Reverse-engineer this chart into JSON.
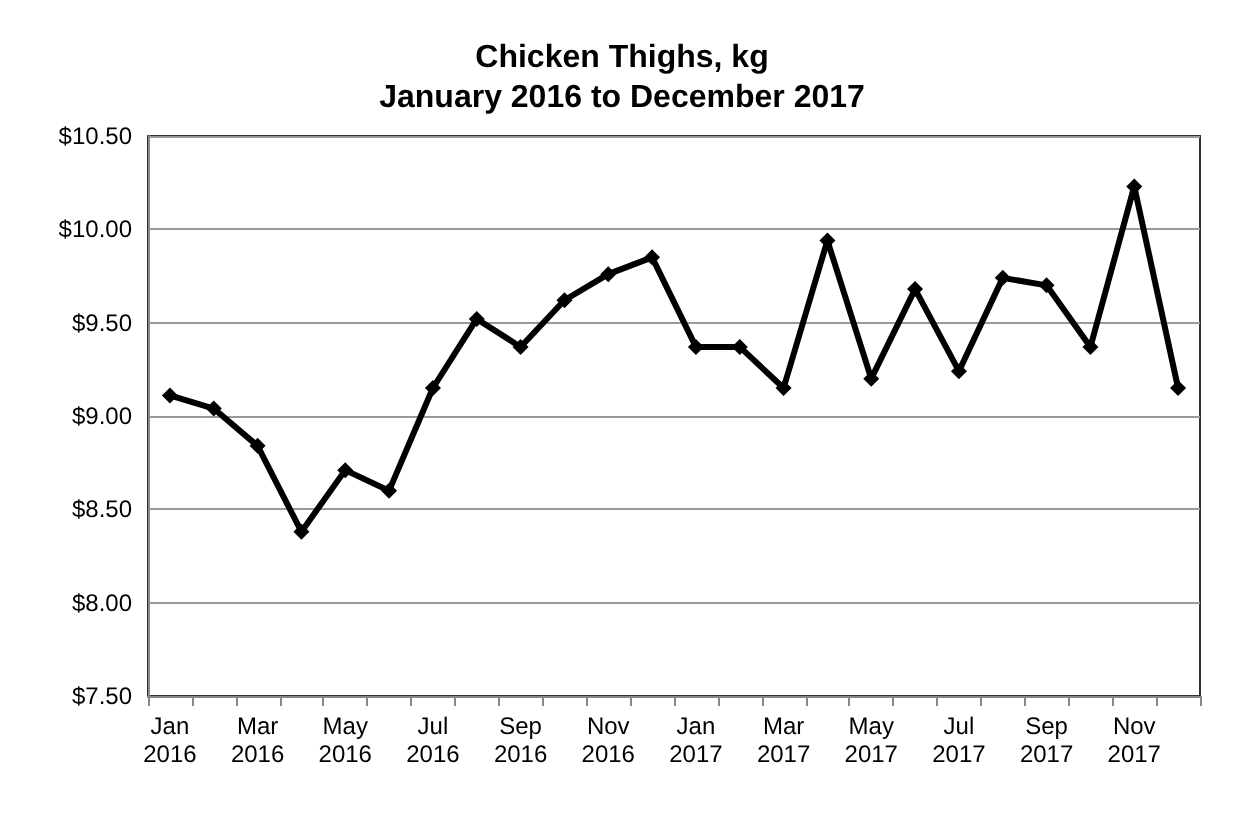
{
  "chart_data": {
    "type": "line",
    "title": "Chicken Thighs, kg\nJanuary 2016 to December 2017",
    "categories": [
      "Jan\n2016",
      null,
      "Mar\n2016",
      null,
      "May\n2016",
      null,
      "Jul\n2016",
      null,
      "Sep\n2016",
      null,
      "Nov\n2016",
      null,
      "Jan\n2017",
      null,
      "Mar\n2017",
      null,
      "May\n2017",
      null,
      "Jul\n2017",
      null,
      "Sep\n2017",
      null,
      "Nov\n2017",
      null
    ],
    "series": [
      {
        "color": "#000000",
        "values": [
          9.11,
          9.04,
          8.84,
          8.38,
          8.71,
          8.6,
          9.15,
          9.52,
          9.37,
          9.62,
          9.76,
          9.85,
          9.37,
          9.37,
          9.15,
          9.94,
          9.2,
          9.68,
          9.24,
          9.74,
          9.7,
          9.37,
          10.23,
          9.15
        ]
      }
    ],
    "ylim": [
      7.5,
      10.5
    ],
    "yticks": [
      {
        "value": 7.5,
        "label": "$7.50"
      },
      {
        "value": 8,
        "label": "$8.00"
      },
      {
        "value": 8.5,
        "label": "$8.50"
      },
      {
        "value": 9,
        "label": "$9.00"
      },
      {
        "value": 9.5,
        "label": "$9.50"
      },
      {
        "value": 10,
        "label": "$10.00"
      },
      {
        "value": 10.5,
        "label": "$10.50"
      }
    ],
    "grid": "y",
    "marker": "diamond",
    "line_style": "solid"
  }
}
